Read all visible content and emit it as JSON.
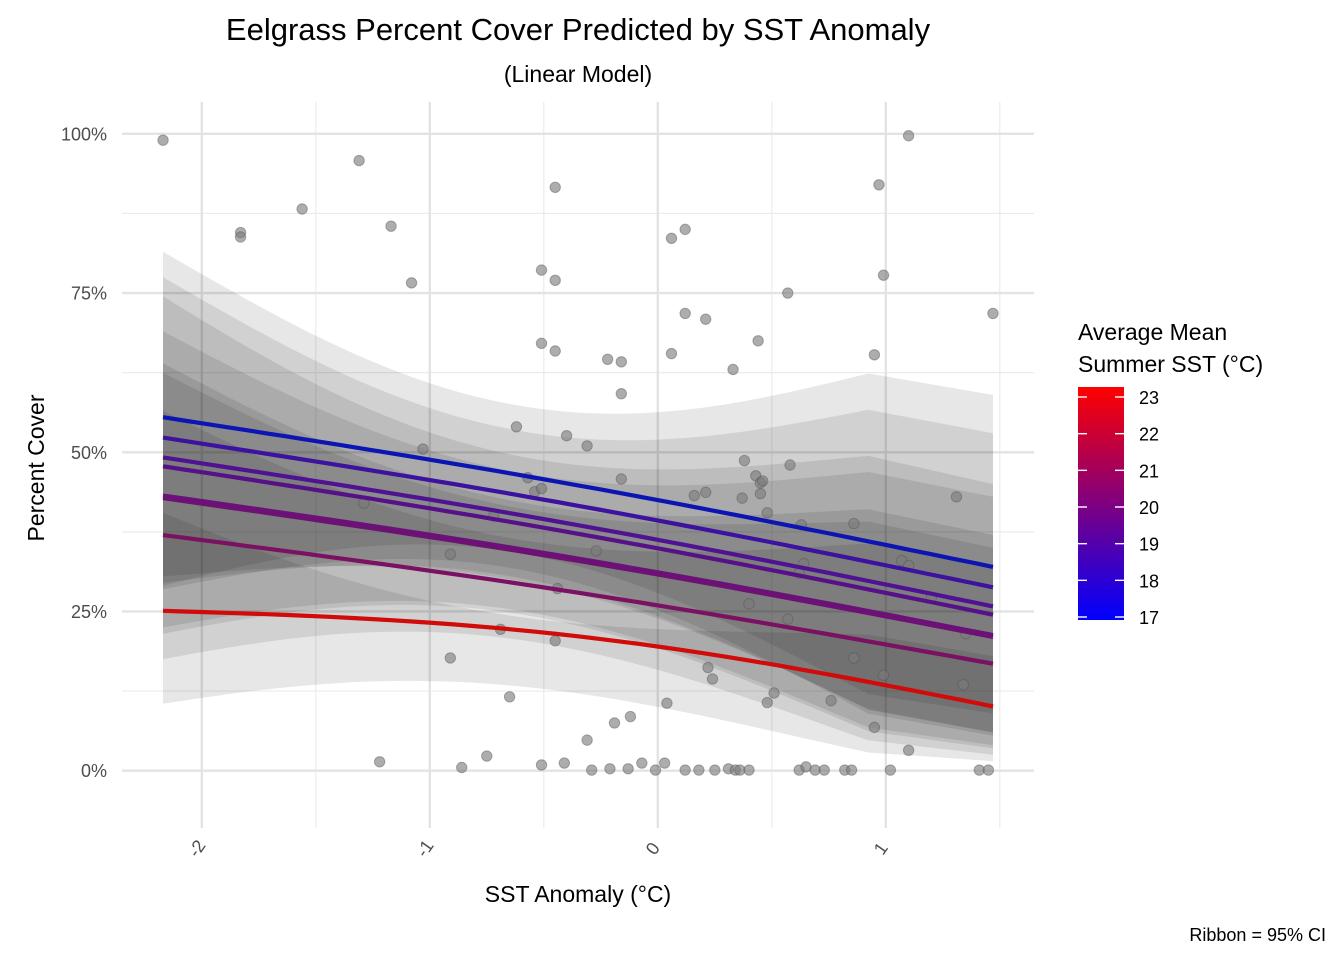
{
  "chart_data": {
    "type": "scatter",
    "title": "Eelgrass Percent Cover Predicted by SST Anomaly",
    "subtitle": "(Linear Model)",
    "xlabel": "SST Anomaly (°C)",
    "ylabel": "Percent Cover",
    "caption": "Ribbon = 95% CI",
    "xlim": [
      -2.35,
      1.65
    ],
    "ylim": [
      -0.09,
      1.05
    ],
    "x_ticks": [
      {
        "value": -2,
        "label": "-2"
      },
      {
        "value": -1,
        "label": "-1"
      },
      {
        "value": 0,
        "label": "0"
      },
      {
        "value": 1,
        "label": "1"
      }
    ],
    "y_ticks": [
      {
        "value": 0,
        "label": "0%"
      },
      {
        "value": 0.25,
        "label": "25%"
      },
      {
        "value": 0.5,
        "label": "50%"
      },
      {
        "value": 0.75,
        "label": "75%"
      },
      {
        "value": 1.0,
        "label": "100%"
      }
    ],
    "grid": true,
    "legend": {
      "title_line1": "Average Mean",
      "title_line2": "Summer SST (°C)",
      "placement": "right",
      "color_low": "#0000ff",
      "color_high": "#ff0000",
      "range": [
        17,
        23
      ],
      "ticks": [
        {
          "value": 23,
          "label": "23"
        },
        {
          "value": 22,
          "label": "22"
        },
        {
          "value": 21,
          "label": "21"
        },
        {
          "value": 20,
          "label": "20"
        },
        {
          "value": 19,
          "label": "19"
        },
        {
          "value": 18,
          "label": "18"
        },
        {
          "value": 17,
          "label": "17"
        }
      ]
    },
    "fit_x_range": [
      -2.17,
      1.47
    ],
    "series": [
      {
        "color": "#0c15b3",
        "x": [
          -2.17,
          1.47
        ],
        "y": [
          0.555,
          0.32
        ],
        "ci_low": [
          0.29,
          0.09
        ],
        "ci_high": [
          0.815,
          0.59
        ]
      },
      {
        "color": "#3c129f",
        "x": [
          -2.17,
          1.47
        ],
        "y": [
          0.523,
          0.288
        ],
        "ci_low": [
          0.285,
          0.055
        ],
        "ci_high": [
          0.775,
          0.53
        ]
      },
      {
        "color": "#4e1292",
        "x": [
          -2.17,
          1.47
        ],
        "y": [
          0.492,
          0.258
        ],
        "ci_low": [
          0.295,
          0.06
        ],
        "ci_high": [
          0.745,
          0.45
        ]
      },
      {
        "color": "#561188",
        "x": [
          -2.17,
          1.47
        ],
        "y": [
          0.478,
          0.245
        ],
        "ci_low": [
          0.305,
          0.06
        ],
        "ci_high": [
          0.69,
          0.43
        ]
      },
      {
        "color": "#6a117a",
        "x": [
          -2.17,
          1.47
        ],
        "y": [
          0.432,
          0.213
        ],
        "ci_low": [
          0.225,
          0.04
        ],
        "ci_high": [
          0.64,
          0.37
        ]
      },
      {
        "color": "#6e1175",
        "x": [
          -2.17,
          1.47
        ],
        "y": [
          0.428,
          0.21
        ],
        "ci_low": [
          0.215,
          0.035
        ],
        "ci_high": [
          0.625,
          0.35
        ]
      },
      {
        "color": "#7a1162",
        "x": [
          -2.17,
          1.47
        ],
        "y": [
          0.37,
          0.168
        ],
        "ci_low": [
          0.175,
          0.025
        ],
        "ci_high": [
          0.565,
          0.32
        ]
      },
      {
        "color": "#d10a0a",
        "x": [
          -2.17,
          1.47
        ],
        "y": [
          0.251,
          0.101
        ],
        "ci_low": [
          0.105,
          0.015
        ],
        "ci_high": [
          0.405,
          0.18
        ]
      }
    ],
    "points": [
      {
        "x": -2.17,
        "y": 0.99
      },
      {
        "x": -1.83,
        "y": 0.845
      },
      {
        "x": -1.83,
        "y": 0.838
      },
      {
        "x": -1.56,
        "y": 0.882
      },
      {
        "x": -1.31,
        "y": 0.958
      },
      {
        "x": -1.17,
        "y": 0.855
      },
      {
        "x": -1.08,
        "y": 0.766
      },
      {
        "x": -1.03,
        "y": 0.505
      },
      {
        "x": -1.29,
        "y": 0.42
      },
      {
        "x": -0.91,
        "y": 0.34
      },
      {
        "x": -0.91,
        "y": 0.177
      },
      {
        "x": -0.72,
        "y": 0.4
      },
      {
        "x": -0.69,
        "y": 0.222
      },
      {
        "x": -0.65,
        "y": 0.116
      },
      {
        "x": -0.62,
        "y": 0.54
      },
      {
        "x": -0.57,
        "y": 0.46
      },
      {
        "x": -0.54,
        "y": 0.438
      },
      {
        "x": -0.51,
        "y": 0.443
      },
      {
        "x": -0.51,
        "y": 0.786
      },
      {
        "x": -0.51,
        "y": 0.671
      },
      {
        "x": -0.45,
        "y": 0.916
      },
      {
        "x": -0.45,
        "y": 0.77
      },
      {
        "x": -0.45,
        "y": 0.659
      },
      {
        "x": -0.44,
        "y": 0.286
      },
      {
        "x": -0.45,
        "y": 0.204
      },
      {
        "x": -0.4,
        "y": 0.526
      },
      {
        "x": -0.31,
        "y": 0.51
      },
      {
        "x": -0.27,
        "y": 0.345
      },
      {
        "x": -0.22,
        "y": 0.646
      },
      {
        "x": -0.16,
        "y": 0.642
      },
      {
        "x": -0.16,
        "y": 0.458
      },
      {
        "x": -0.16,
        "y": 0.592
      },
      {
        "x": -0.19,
        "y": 0.075
      },
      {
        "x": -0.12,
        "y": 0.085
      },
      {
        "x": -0.31,
        "y": 0.048
      },
      {
        "x": 0.06,
        "y": 0.836
      },
      {
        "x": 0.12,
        "y": 0.85
      },
      {
        "x": 0.06,
        "y": 0.655
      },
      {
        "x": 0.12,
        "y": 0.718
      },
      {
        "x": 0.21,
        "y": 0.709
      },
      {
        "x": 0.16,
        "y": 0.432
      },
      {
        "x": 0.21,
        "y": 0.437
      },
      {
        "x": 0.22,
        "y": 0.162
      },
      {
        "x": 0.24,
        "y": 0.144
      },
      {
        "x": 0.04,
        "y": 0.106
      },
      {
        "x": 0.33,
        "y": 0.63
      },
      {
        "x": 0.44,
        "y": 0.675
      },
      {
        "x": 0.38,
        "y": 0.487
      },
      {
        "x": 0.43,
        "y": 0.463
      },
      {
        "x": 0.45,
        "y": 0.452
      },
      {
        "x": 0.46,
        "y": 0.455
      },
      {
        "x": 0.45,
        "y": 0.435
      },
      {
        "x": 0.37,
        "y": 0.428
      },
      {
        "x": 0.48,
        "y": 0.405
      },
      {
        "x": 0.4,
        "y": 0.262
      },
      {
        "x": 0.57,
        "y": 0.75
      },
      {
        "x": 0.58,
        "y": 0.48
      },
      {
        "x": 0.63,
        "y": 0.386
      },
      {
        "x": 0.64,
        "y": 0.325
      },
      {
        "x": 0.62,
        "y": 0.31
      },
      {
        "x": 0.57,
        "y": 0.238
      },
      {
        "x": 0.51,
        "y": 0.122
      },
      {
        "x": 0.48,
        "y": 0.107
      },
      {
        "x": 0.95,
        "y": 0.653
      },
      {
        "x": 0.97,
        "y": 0.92
      },
      {
        "x": 0.99,
        "y": 0.778
      },
      {
        "x": 1.1,
        "y": 0.997
      },
      {
        "x": 0.86,
        "y": 0.388
      },
      {
        "x": 1.07,
        "y": 0.33
      },
      {
        "x": 1.1,
        "y": 0.322
      },
      {
        "x": 0.86,
        "y": 0.177
      },
      {
        "x": 0.99,
        "y": 0.15
      },
      {
        "x": 0.76,
        "y": 0.11
      },
      {
        "x": 0.95,
        "y": 0.068
      },
      {
        "x": 1.1,
        "y": 0.032
      },
      {
        "x": 1.31,
        "y": 0.43
      },
      {
        "x": 1.2,
        "y": 0.272
      },
      {
        "x": 1.35,
        "y": 0.215
      },
      {
        "x": 1.34,
        "y": 0.135
      },
      {
        "x": 1.47,
        "y": 0.718
      },
      {
        "x": -1.22,
        "y": 0.014
      },
      {
        "x": -0.86,
        "y": 0.005
      },
      {
        "x": -0.75,
        "y": 0.023
      },
      {
        "x": -0.51,
        "y": 0.009
      },
      {
        "x": -0.41,
        "y": 0.012
      },
      {
        "x": -0.29,
        "y": 0.001
      },
      {
        "x": -0.21,
        "y": 0.003
      },
      {
        "x": -0.13,
        "y": 0.003
      },
      {
        "x": -0.07,
        "y": 0.012
      },
      {
        "x": -0.01,
        "y": 0.001
      },
      {
        "x": 0.03,
        "y": 0.012
      },
      {
        "x": 0.12,
        "y": 0.001
      },
      {
        "x": 0.18,
        "y": 0.001
      },
      {
        "x": 0.25,
        "y": 0.001
      },
      {
        "x": 0.31,
        "y": 0.003
      },
      {
        "x": 0.34,
        "y": 0.001
      },
      {
        "x": 0.36,
        "y": 0.001
      },
      {
        "x": 0.4,
        "y": 0.001
      },
      {
        "x": 0.62,
        "y": 0.001
      },
      {
        "x": 0.65,
        "y": 0.006
      },
      {
        "x": 0.69,
        "y": 0.001
      },
      {
        "x": 0.73,
        "y": 0.001
      },
      {
        "x": 0.82,
        "y": 0.001
      },
      {
        "x": 0.85,
        "y": 0.001
      },
      {
        "x": 1.02,
        "y": 0.001
      },
      {
        "x": 1.41,
        "y": 0.001
      },
      {
        "x": 1.45,
        "y": 0.001
      }
    ]
  }
}
